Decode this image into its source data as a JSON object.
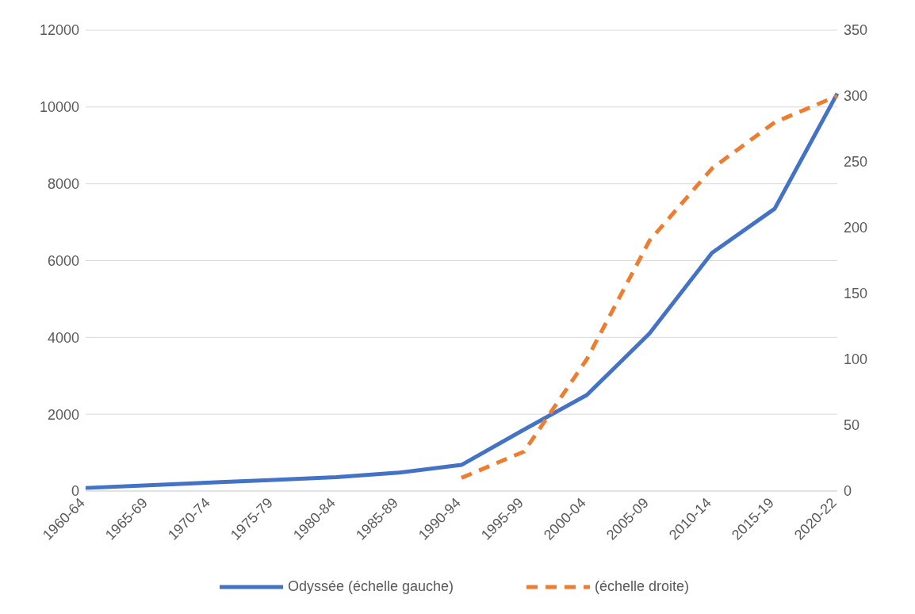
{
  "chart_data": {
    "type": "line",
    "categories": [
      "1960-64",
      "1965-69",
      "1970-74",
      "1975-79",
      "1980-84",
      "1985-89",
      "1990-94",
      "1995-99",
      "2000-04",
      "2005-09",
      "2010-14",
      "2015-19",
      "2020-22"
    ],
    "series": [
      {
        "name": "Odyssée (échelle gauche)",
        "color": "#4472c4",
        "line_style": "solid",
        "values": [
          80,
          150,
          220,
          290,
          360,
          480,
          680,
          1600,
          2500,
          4100,
          6200,
          7350,
          10350
        ]
      },
      {
        "name": "(échelle droite)",
        "color": "#ed7d31",
        "line_style": "dashed",
        "axis": "y2",
        "values": [
          null,
          null,
          null,
          null,
          null,
          null,
          10,
          30,
          100,
          190,
          245,
          280,
          300
        ]
      }
    ],
    "ylim": [
      0,
      12000
    ],
    "yticks": [
      0,
      2000,
      4000,
      6000,
      8000,
      10000,
      12000
    ],
    "y2lim": [
      0,
      350
    ],
    "y2ticks": [
      0,
      50,
      100,
      150,
      200,
      250,
      300,
      350
    ],
    "grid": "y",
    "legend": "bottom",
    "marker": "none"
  }
}
